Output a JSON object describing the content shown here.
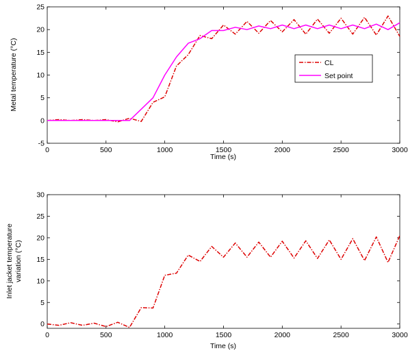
{
  "chart_data": [
    {
      "type": "line",
      "title": "",
      "xlabel": "Time (s)",
      "ylabel": "Metal temperature (°C)",
      "xlim": [
        0,
        3000
      ],
      "ylim": [
        -5,
        25
      ],
      "xticks": [
        "0",
        "500",
        "1000",
        "1500",
        "2000",
        "2500",
        "3000"
      ],
      "yticks": [
        "-5",
        "0",
        "5",
        "10",
        "15",
        "20",
        "25"
      ],
      "grid": false,
      "legend_position": "center-right",
      "series": [
        {
          "name": "CL",
          "color": "#dd0000",
          "style": "dash-dot",
          "x": [
            0,
            100,
            200,
            300,
            400,
            500,
            600,
            700,
            800,
            900,
            1000,
            1100,
            1200,
            1300,
            1400,
            1500,
            1600,
            1700,
            1800,
            1900,
            2000,
            2100,
            2200,
            2300,
            2400,
            2500,
            2600,
            2700,
            2800,
            2900,
            3000
          ],
          "y": [
            0,
            0.2,
            0,
            0.2,
            0,
            0.2,
            -0.3,
            0.5,
            -0.2,
            4,
            5.2,
            12,
            14.5,
            18.7,
            18,
            21,
            19,
            21.8,
            19.2,
            22,
            19.5,
            22.2,
            19,
            22.3,
            19.2,
            22.5,
            19,
            22.7,
            18.8,
            23,
            18.5
          ]
        },
        {
          "name": "Set point",
          "color": "#ff00ff",
          "style": "solid",
          "x": [
            0,
            100,
            200,
            300,
            400,
            500,
            600,
            700,
            800,
            900,
            1000,
            1100,
            1200,
            1300,
            1400,
            1500,
            1600,
            1700,
            1800,
            1900,
            2000,
            2100,
            2200,
            2300,
            2400,
            2500,
            2600,
            2700,
            2800,
            2900,
            3000
          ],
          "y": [
            0,
            0,
            0,
            0,
            0,
            0,
            0,
            0,
            2.5,
            5,
            10,
            14,
            17,
            18,
            19.8,
            19.8,
            20.5,
            20,
            20.8,
            20.2,
            21,
            20.2,
            21,
            20.2,
            21,
            20.2,
            21,
            20.2,
            21.2,
            20,
            21.5
          ]
        }
      ]
    },
    {
      "type": "line",
      "title": "",
      "xlabel": "Time (s)",
      "ylabel": "Inlet jacket temperature variation (°C)",
      "ylabel_lines": [
        "Inlet jacket temperature",
        "variation (°C)"
      ],
      "xlim": [
        0,
        3000
      ],
      "ylim": [
        -1,
        30
      ],
      "xticks": [
        "0",
        "500",
        "1000",
        "1500",
        "2000",
        "2500",
        "3000"
      ],
      "yticks": [
        "0",
        "5",
        "10",
        "15",
        "20",
        "25",
        "30"
      ],
      "grid": false,
      "series": [
        {
          "color": "#dd0000",
          "style": "dash-dot",
          "x": [
            0,
            100,
            200,
            300,
            400,
            500,
            600,
            700,
            800,
            900,
            1000,
            1100,
            1200,
            1300,
            1400,
            1500,
            1600,
            1700,
            1800,
            1900,
            2000,
            2100,
            2200,
            2300,
            2400,
            2500,
            2600,
            2700,
            2800,
            2900,
            3000
          ],
          "y": [
            0,
            -0.3,
            0.3,
            -0.3,
            0.2,
            -0.6,
            0.4,
            -0.8,
            3.8,
            3.7,
            11.3,
            11.8,
            16,
            14.5,
            18,
            15.5,
            18.8,
            15.5,
            19,
            15.5,
            19.2,
            15.3,
            19.3,
            15.2,
            19.5,
            15.0,
            19.8,
            14.7,
            20.2,
            14.3,
            20.5
          ]
        }
      ]
    }
  ]
}
